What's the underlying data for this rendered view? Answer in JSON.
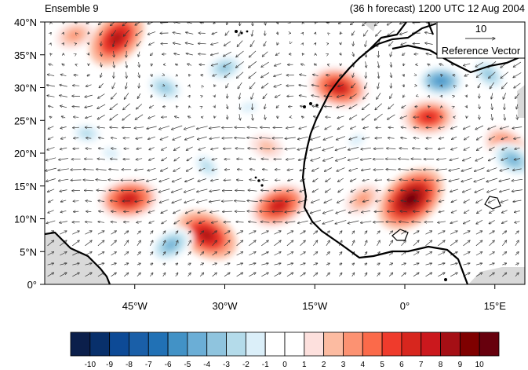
{
  "chart_data": {
    "type": "heatmap",
    "title_left": "Ensemble 9",
    "title_right": "(36 h forecast) 1200 UTC 12 Aug 2004",
    "map": {
      "lon_range": [
        -60,
        20
      ],
      "lat_range": [
        0,
        40
      ],
      "x_ticks": [
        "45°W",
        "30°W",
        "15°W",
        "0°",
        "15°E"
      ],
      "x_tick_values": [
        -45,
        -30,
        -15,
        0,
        15
      ],
      "y_ticks": [
        "0°",
        "5°N",
        "10°N",
        "15°N",
        "20°N",
        "25°N",
        "30°N",
        "35°N",
        "40°N"
      ],
      "y_tick_values": [
        0,
        5,
        10,
        15,
        20,
        25,
        30,
        35,
        40
      ]
    },
    "reference_vector": {
      "value": "10",
      "label": "Reference Vector"
    },
    "colorbar": {
      "labels": [
        "-10",
        "-9",
        "-8",
        "-7",
        "-6",
        "-5",
        "-4",
        "-3",
        "-2",
        "-1",
        "0",
        "1",
        "2",
        "3",
        "4",
        "5",
        "6",
        "7",
        "8",
        "9",
        "10"
      ],
      "colors": [
        "#0b1f4b",
        "#08306b",
        "#0d4a96",
        "#1a5fa8",
        "#2171b5",
        "#4292c6",
        "#6baed6",
        "#8fc4de",
        "#b4dbea",
        "#dbeff9",
        "#ffffff",
        "#ffffff",
        "#fde0dd",
        "#fcbba1",
        "#fc9272",
        "#fb6a4a",
        "#ef3b2c",
        "#d7261e",
        "#cb181d",
        "#a50f15",
        "#7f0000",
        "#67000d"
      ]
    },
    "anomalies": [
      {
        "lon": -48,
        "lat": 37.5,
        "value": 8
      },
      {
        "lon": -46,
        "lat": 13,
        "value": 7
      },
      {
        "lon": -33,
        "lat": 7.5,
        "value": 8
      },
      {
        "lon": -21,
        "lat": 12,
        "value": 7
      },
      {
        "lon": -11,
        "lat": 30,
        "value": 7
      },
      {
        "lon": 1,
        "lat": 13,
        "value": 10
      },
      {
        "lon": 4,
        "lat": 25.5,
        "value": 6
      },
      {
        "lon": 17,
        "lat": 21,
        "value": 5
      },
      {
        "lon": -55,
        "lat": 38,
        "value": 3
      },
      {
        "lon": -23,
        "lat": 21,
        "value": 2
      },
      {
        "lon": -7,
        "lat": 13,
        "value": 3
      },
      {
        "lon": 6,
        "lat": 31,
        "value": -6
      },
      {
        "lon": 14,
        "lat": 32,
        "value": -4
      },
      {
        "lon": -30,
        "lat": 33,
        "value": -4
      },
      {
        "lon": -40,
        "lat": 30,
        "value": -4
      },
      {
        "lon": -39,
        "lat": 6,
        "value": -5
      },
      {
        "lon": -53,
        "lat": 23,
        "value": -3
      },
      {
        "lon": -33,
        "lat": 18,
        "value": -3
      },
      {
        "lon": -26,
        "lat": 27,
        "value": -2
      },
      {
        "lon": 18,
        "lat": 19,
        "value": -5
      },
      {
        "lon": -8,
        "lat": 22,
        "value": -2
      },
      {
        "lon": -49,
        "lat": 20,
        "value": -2
      }
    ]
  }
}
